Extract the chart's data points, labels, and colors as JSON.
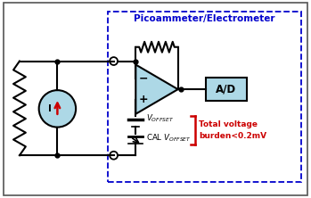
{
  "title": "Picoammeter/Electrometer",
  "title_color": "#0000CC",
  "dashed_border_color": "#0000CC",
  "background_color": "#FFFFFF",
  "text_ad": "A/D",
  "amp_fill": "#ADD8E6",
  "ad_fill": "#ADD8E6",
  "source_fill": "#ADD8E6",
  "wire_color": "#000000",
  "red_color": "#CC0000",
  "text_total1": "Total voltage",
  "text_total2": "burden<0.2mV"
}
